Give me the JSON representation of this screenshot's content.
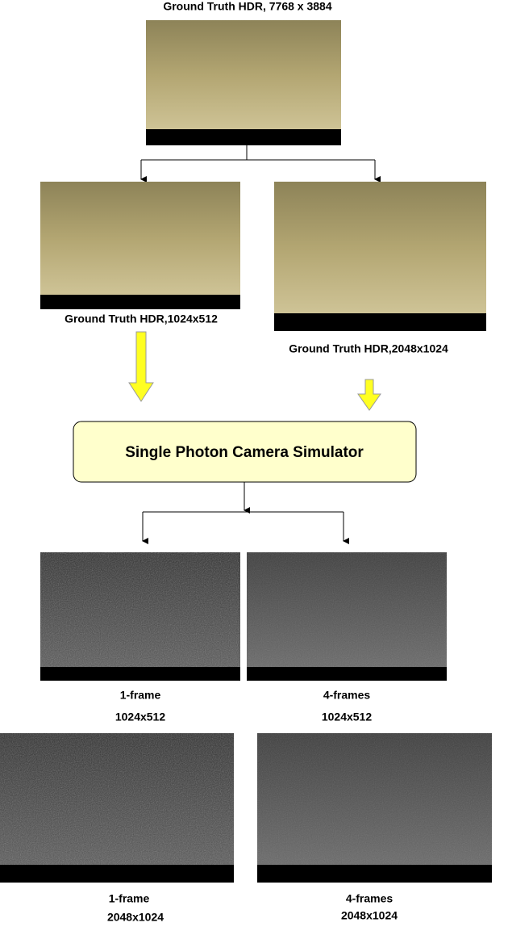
{
  "ground_truth": {
    "caption": "Ground Truth HDR, 7768 x 3884"
  },
  "downsampled": [
    {
      "caption": "Ground Truth HDR,1024x512"
    },
    {
      "caption": "Ground Truth HDR,2048x1024"
    }
  ],
  "simulator": {
    "label": "Single Photon Camera Simulator"
  },
  "outputs": [
    {
      "frames": "1-frame",
      "resolution": "1024x512"
    },
    {
      "frames": "4-frames",
      "resolution": "1024x512"
    },
    {
      "frames": "1-frame",
      "resolution": "2048x1024"
    },
    {
      "frames": "4-frames",
      "resolution": "2048x1024"
    }
  ]
}
